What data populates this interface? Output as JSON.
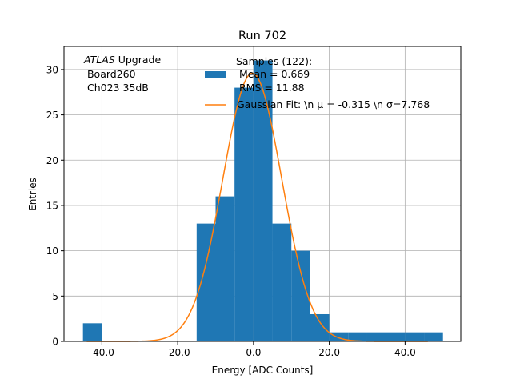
{
  "chart_data": {
    "type": "bar",
    "title": "Run 702",
    "xlabel": "Energy [ADC Counts]",
    "ylabel": "Entries",
    "xlim": [
      -50,
      54.7
    ],
    "ylim": [
      0,
      32.55
    ],
    "grid": true,
    "xticks": [
      -40,
      -20,
      0,
      20,
      40
    ],
    "xtick_labels": [
      "-40.0",
      "-20.0",
      "0.0",
      "20.0",
      "40.0"
    ],
    "yticks": [
      0,
      5,
      10,
      15,
      20,
      25,
      30
    ],
    "ytick_labels": [
      "0",
      "5",
      "10",
      "15",
      "20",
      "25",
      "30"
    ],
    "histogram": {
      "bin_edges": [
        -45,
        -40,
        -35,
        -30,
        -25,
        -20,
        -15,
        -10,
        -5,
        0,
        5,
        10,
        15,
        20,
        25,
        30,
        35,
        40,
        45,
        50
      ],
      "counts": [
        2,
        0,
        0,
        0,
        0,
        0,
        13,
        16,
        28,
        31,
        13,
        10,
        3,
        1,
        1,
        1,
        1,
        1,
        1
      ],
      "color": "#1f77b4"
    },
    "gaussian_fit": {
      "mu": -0.315,
      "sigma": 7.768,
      "amplitude": 29.6,
      "x_range": [
        -44,
        46
      ],
      "color": "#ff7f0e"
    },
    "legend": {
      "placement": "top-center",
      "entries": [
        {
          "label_lines": [
            "Samples (122):",
            " Mean = 0.669",
            " RMS = 11.88"
          ],
          "color": "#1f77b4"
        },
        {
          "label": "Gaussian Fit: \\n μ = -0.315 \\n σ=7.768",
          "color": "#ff7f0e"
        }
      ]
    },
    "annotation": {
      "italic": "ATLAS",
      "line1_rest": " Upgrade",
      "line2": " Board260",
      "line3": " Ch023 35dB"
    }
  }
}
